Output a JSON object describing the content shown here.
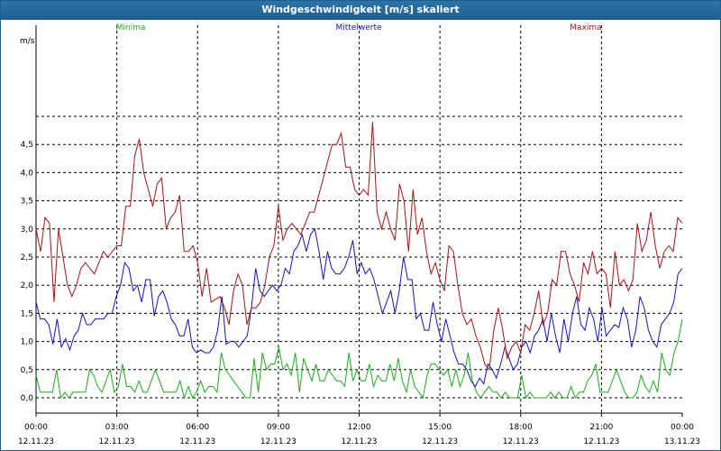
{
  "window": {
    "title": "Windgeschwindigkeit [m/s] skaliert"
  },
  "chart_data": {
    "type": "line",
    "title": "Windgeschwindigkeit [m/s] skaliert",
    "ylabel": "m/s",
    "ylim": [
      -0.2,
      5.0
    ],
    "y_ticks": [
      "0,0",
      "0,5",
      "1,0",
      "1,5",
      "2,0",
      "2,5",
      "3,0",
      "3,5",
      "4,0",
      "4,5"
    ],
    "x_ticks": [
      {
        "time": "00:00",
        "date": "12.11.23"
      },
      {
        "time": "03:00",
        "date": "12.11.23"
      },
      {
        "time": "06:00",
        "date": "12.11.23"
      },
      {
        "time": "09:00",
        "date": "12.11.23"
      },
      {
        "time": "12:00",
        "date": "12.11.23"
      },
      {
        "time": "15:00",
        "date": "12.11.23"
      },
      {
        "time": "18:00",
        "date": "12.11.23"
      },
      {
        "time": "21:00",
        "date": "12.11.23"
      },
      {
        "time": "00:00",
        "date": "13.11.23"
      }
    ],
    "grid": true,
    "series": [
      {
        "name": "Minima",
        "color": "#1faa1f",
        "values": [
          0.4,
          0.1,
          0.1,
          0.1,
          0.1,
          0.5,
          0,
          0.1,
          0,
          0.1,
          0.1,
          0.1,
          0.1,
          0.5,
          0.4,
          0.2,
          0.1,
          0.3,
          0.5,
          0.1,
          0.2,
          0.6,
          0.2,
          0.2,
          0.1,
          0.3,
          0.1,
          0.1,
          0.3,
          0.5,
          0.3,
          0.1,
          0.1,
          0.1,
          0.1,
          0.3,
          0,
          0.2,
          0,
          0.1,
          0.3,
          0.1,
          0.2,
          0.2,
          0.1,
          0.8,
          0.5,
          0.4,
          0.3,
          0.2,
          0.1,
          0,
          0,
          0.7,
          0.1,
          0.8,
          0.5,
          0.6,
          0.6,
          0.9,
          0.5,
          0.6,
          0.4,
          0.8,
          0.1,
          0.7,
          0.5,
          0.3,
          0.6,
          0.3,
          0.3,
          0.5,
          0.4,
          0.3,
          0.3,
          0.2,
          0.8,
          0.3,
          0.5,
          0.3,
          0.3,
          0.6,
          0.2,
          0.4,
          0.3,
          0.3,
          0.6,
          0.3,
          0.7,
          0.3,
          0.1,
          0.5,
          0.2,
          0.1,
          0,
          0.4,
          0.6,
          0.6,
          0.5,
          0.4,
          0.5,
          0.2,
          0.5,
          0.2,
          0.4,
          0.8,
          0.3,
          0.1,
          0,
          0.1,
          0.2,
          0.1,
          0.1,
          0,
          0.1,
          0,
          0,
          0,
          0.4,
          0,
          0.1,
          0,
          0,
          0,
          0,
          0.1,
          0,
          0.1,
          0,
          0,
          0.2,
          0,
          0.1,
          0.1,
          0.3,
          0.4,
          0.6,
          0.1,
          0.1,
          0.1,
          0.3,
          0.5,
          0.3,
          0.1,
          0,
          0,
          0.1,
          0.4,
          0.2,
          0.1,
          0.3,
          0.1,
          0.8,
          0.5,
          0.4,
          0.8,
          1.0,
          1.4
        ]
      },
      {
        "name": "Mittelwerte",
        "color": "#1515b8",
        "values": [
          1.7,
          1.4,
          1.4,
          1.3,
          0.95,
          1.4,
          0.9,
          1.05,
          0.85,
          1.1,
          1.2,
          1.5,
          1.3,
          1.3,
          1.4,
          1.4,
          1.4,
          1.5,
          1.5,
          1.8,
          2.0,
          2.4,
          2.3,
          1.9,
          2.0,
          1.7,
          2.1,
          2.1,
          1.45,
          1.8,
          1.9,
          1.7,
          1.4,
          1.3,
          1.1,
          1.1,
          1.4,
          0.9,
          0.8,
          0.85,
          0.8,
          0.8,
          0.9,
          1.2,
          1.8,
          0.95,
          1.0,
          1.0,
          0.9,
          1.0,
          1.1,
          1.6,
          2.3,
          1.9,
          1.8,
          1.9,
          2.0,
          1.9,
          2.0,
          2.3,
          2.2,
          2.6,
          2.7,
          2.9,
          2.6,
          2.9,
          3.0,
          2.6,
          2.1,
          2.6,
          2.3,
          2.2,
          2.2,
          2.3,
          2.5,
          2.8,
          2.2,
          2.4,
          2.2,
          2.3,
          2.1,
          1.8,
          1.5,
          1.7,
          1.9,
          1.5,
          1.9,
          2.5,
          2.1,
          2.1,
          1.4,
          1.5,
          1.2,
          1.2,
          1.7,
          1.3,
          1.0,
          1.4,
          1.1,
          0.8,
          0.6,
          0.6,
          0.5,
          0.3,
          0.2,
          0.35,
          0.25,
          0.6,
          0.5,
          0.35,
          0.6,
          0.9,
          0.7,
          0.5,
          0.6,
          0.9,
          1.0,
          0.8,
          1.1,
          1.2,
          1.4,
          1.0,
          1.5,
          1.1,
          0.8,
          1.4,
          1.0,
          1.5,
          1.8,
          1.3,
          1.2,
          1.6,
          1.4,
          1.0,
          1.6,
          1.1,
          1.2,
          1.3,
          1.25,
          1.6,
          1.4,
          0.9,
          1.2,
          1.8,
          1.6,
          1.2,
          1.0,
          0.9,
          1.3,
          1.4,
          1.5,
          1.7,
          2.2,
          2.3
        ]
      },
      {
        "name": "Maxima",
        "color": "#a51515",
        "values": [
          3.0,
          2.6,
          3.2,
          3.1,
          1.7,
          3.0,
          2.5,
          2.0,
          1.8,
          2.0,
          2.3,
          2.4,
          2.3,
          2.2,
          2.4,
          2.6,
          2.5,
          2.6,
          2.7,
          2.7,
          3.4,
          3.4,
          4.3,
          4.6,
          4.0,
          3.7,
          3.4,
          3.8,
          3.9,
          3.0,
          3.2,
          3.3,
          3.6,
          2.6,
          2.6,
          2.7,
          2.4,
          1.8,
          2.3,
          1.7,
          1.75,
          1.8,
          1.6,
          1.3,
          1.9,
          2.2,
          2.0,
          1.3,
          1.6,
          1.6,
          1.7,
          2.0,
          2.5,
          2.7,
          3.4,
          2.8,
          3.0,
          3.1,
          3.0,
          2.9,
          3.1,
          3.3,
          3.3,
          3.6,
          3.9,
          4.2,
          4.5,
          4.5,
          4.7,
          4.1,
          4.1,
          3.7,
          3.6,
          3.7,
          3.6,
          4.9,
          3.3,
          3.0,
          3.3,
          3.0,
          2.8,
          3.8,
          3.5,
          2.6,
          3.7,
          2.9,
          3.2,
          2.6,
          2.2,
          2.4,
          2.1,
          1.9,
          2.7,
          2.6,
          2.0,
          1.5,
          1.3,
          1.4,
          1.1,
          0.9,
          0.6,
          0.5,
          1.2,
          1.6,
          1.2,
          0.7,
          0.9,
          1.0,
          0.8,
          1.3,
          1.2,
          1.5,
          1.9,
          1.3,
          1.5,
          2.1,
          2.0,
          2.6,
          2.6,
          2.2,
          2.0,
          1.7,
          2.4,
          2.2,
          2.6,
          2.2,
          2.3,
          2.2,
          1.6,
          2.6,
          2.0,
          2.1,
          1.9,
          2.1,
          3.1,
          2.6,
          2.8,
          3.3,
          2.7,
          2.3,
          2.6,
          2.7,
          2.6,
          3.2,
          3.1
        ]
      }
    ]
  }
}
